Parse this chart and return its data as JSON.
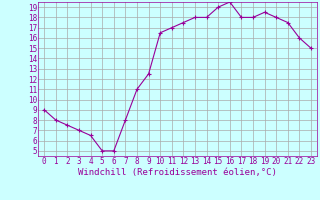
{
  "x": [
    0,
    1,
    2,
    3,
    4,
    5,
    6,
    7,
    8,
    9,
    10,
    11,
    12,
    13,
    14,
    15,
    16,
    17,
    18,
    19,
    20,
    21,
    22,
    23
  ],
  "y": [
    9,
    8,
    7.5,
    7,
    6.5,
    5,
    5,
    8,
    11,
    12.5,
    16.5,
    17,
    17.5,
    18,
    18,
    19,
    19.5,
    18,
    18,
    18.5,
    18,
    17.5,
    16,
    15
  ],
  "line_color": "#990099",
  "marker": "+",
  "marker_size": 3,
  "marker_linewidth": 0.8,
  "bg_color": "#ccffff",
  "grid_color": "#aaaaaa",
  "xlabel": "Windchill (Refroidissement éolien,°C)",
  "ylabel": "",
  "xlim": [
    -0.5,
    23.5
  ],
  "ylim": [
    4.5,
    19.5
  ],
  "yticks": [
    5,
    6,
    7,
    8,
    9,
    10,
    11,
    12,
    13,
    14,
    15,
    16,
    17,
    18,
    19
  ],
  "xticks": [
    0,
    1,
    2,
    3,
    4,
    5,
    6,
    7,
    8,
    9,
    10,
    11,
    12,
    13,
    14,
    15,
    16,
    17,
    18,
    19,
    20,
    21,
    22,
    23
  ],
  "tick_label_fontsize": 5.5,
  "xlabel_fontsize": 6.5,
  "axis_label_color": "#990099",
  "line_width": 0.8
}
